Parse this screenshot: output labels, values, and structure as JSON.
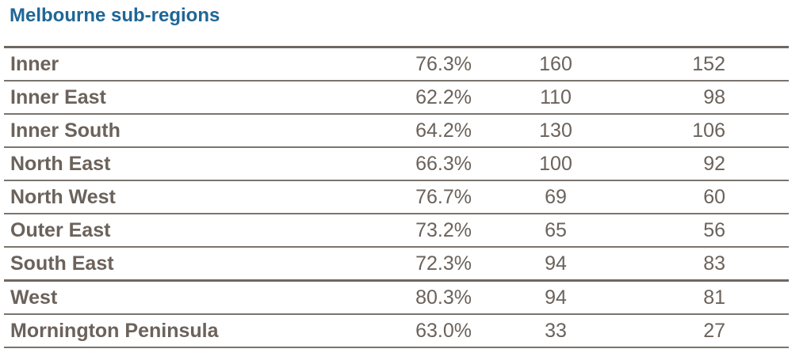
{
  "title": "Melbourne sub-regions",
  "rows": [
    {
      "name": "Inner",
      "pct": "76.3%",
      "a": "160",
      "b": "152"
    },
    {
      "name": "Inner East",
      "pct": "62.2%",
      "a": "110",
      "b": "98"
    },
    {
      "name": "Inner South",
      "pct": "64.2%",
      "a": "130",
      "b": "106"
    },
    {
      "name": "North East",
      "pct": "66.3%",
      "a": "100",
      "b": "92"
    },
    {
      "name": "North West",
      "pct": "76.7%",
      "a": "69",
      "b": "60"
    },
    {
      "name": "Outer East",
      "pct": "73.2%",
      "a": "65",
      "b": "56"
    },
    {
      "name": "South East",
      "pct": "72.3%",
      "a": "94",
      "b": "83"
    },
    {
      "name": "West",
      "pct": "80.3%",
      "a": "94",
      "b": "81"
    },
    {
      "name": "Mornington Peninsula",
      "pct": "63.0%",
      "a": "33",
      "b": "27"
    }
  ]
}
